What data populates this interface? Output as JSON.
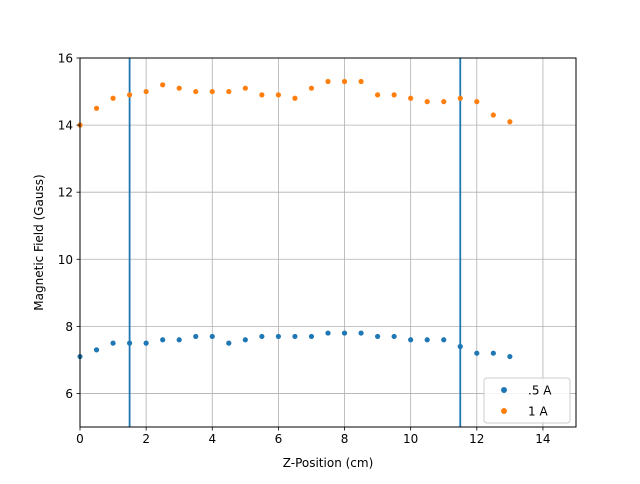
{
  "chart_data": {
    "type": "scatter",
    "xlabel": "Z-Position (cm)",
    "ylabel": "Magnetic Field (Gauss)",
    "xlim": [
      0,
      15
    ],
    "ylim": [
      5,
      16
    ],
    "xticks": [
      "0",
      "2",
      "4",
      "6",
      "8",
      "10",
      "12",
      "14"
    ],
    "yticks": [
      "6",
      "8",
      "10",
      "12",
      "14",
      "16"
    ],
    "grid": true,
    "legend_position": "lower-right",
    "vlines": [
      1.5,
      11.5
    ],
    "vline_color": "#1f77b4",
    "series": [
      {
        "name": ".5 A",
        "color": "#1f77b4",
        "x": [
          0,
          0.5,
          1,
          1.5,
          2,
          2.5,
          3,
          3.5,
          4,
          4.5,
          5,
          5.5,
          6,
          6.5,
          7,
          7.5,
          8,
          8.5,
          9,
          9.5,
          10,
          10.5,
          11,
          11.5,
          12,
          12.5,
          13
        ],
        "y": [
          7.1,
          7.3,
          7.5,
          7.5,
          7.5,
          7.6,
          7.6,
          7.7,
          7.7,
          7.5,
          7.6,
          7.7,
          7.7,
          7.7,
          7.7,
          7.8,
          7.8,
          7.8,
          7.7,
          7.7,
          7.6,
          7.6,
          7.6,
          7.4,
          7.2,
          7.2,
          7.1
        ]
      },
      {
        "name": "1 A",
        "color": "#ff7f0e",
        "x": [
          0,
          0.5,
          1,
          1.5,
          2,
          2.5,
          3,
          3.5,
          4,
          4.5,
          5,
          5.5,
          6,
          6.5,
          7,
          7.5,
          8,
          8.5,
          9,
          9.5,
          10,
          10.5,
          11,
          11.5,
          12,
          12.5,
          13
        ],
        "y": [
          14.0,
          14.5,
          14.8,
          14.9,
          15.0,
          15.2,
          15.1,
          15.0,
          15.0,
          15.0,
          15.1,
          14.9,
          14.9,
          14.8,
          15.1,
          15.3,
          15.3,
          15.3,
          14.9,
          14.9,
          14.8,
          14.7,
          14.7,
          14.8,
          14.7,
          14.3,
          14.1
        ]
      }
    ]
  }
}
